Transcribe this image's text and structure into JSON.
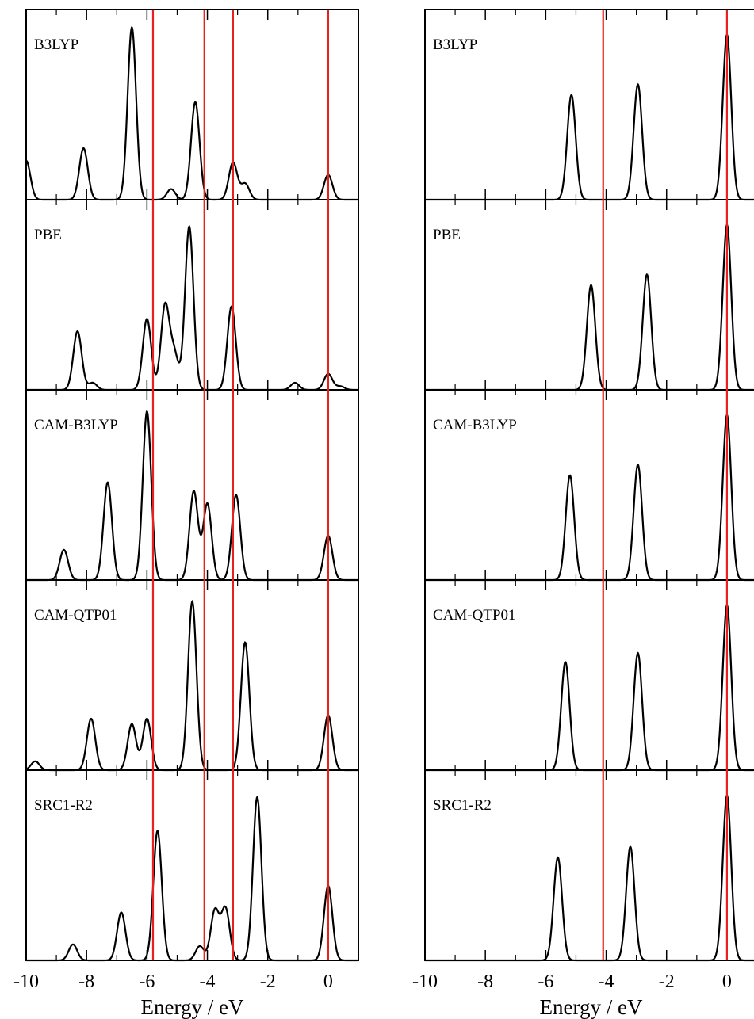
{
  "chart_data": [
    {
      "type": "line",
      "xlabel": "Energy / eV",
      "xlim": [
        -10,
        1
      ],
      "xticks": [
        -10,
        -8,
        -6,
        -4,
        -2,
        0
      ],
      "tick_labels": [
        "-10",
        "-8",
        "-6",
        "-4",
        "-2",
        "0"
      ],
      "reference_lines": [
        -5.8,
        -4.1,
        -3.15,
        0.0
      ],
      "reference_color": "#e8211e",
      "line_color": "#000000",
      "grid": false,
      "panels": [
        {
          "label": "B3LYP",
          "peaks": [
            {
              "x": -10.0,
              "height": 0.22
            },
            {
              "x": -8.1,
              "height": 0.29
            },
            {
              "x": -6.5,
              "height": 0.97
            },
            {
              "x": -5.2,
              "height": 0.06
            },
            {
              "x": -4.4,
              "height": 0.55
            },
            {
              "x": -3.15,
              "height": 0.21
            },
            {
              "x": -2.75,
              "height": 0.09
            },
            {
              "x": 0.0,
              "height": 0.14
            }
          ]
        },
        {
          "label": "PBE",
          "peaks": [
            {
              "x": -8.3,
              "height": 0.33
            },
            {
              "x": -7.8,
              "height": 0.04
            },
            {
              "x": -6.0,
              "height": 0.4
            },
            {
              "x": -5.4,
              "height": 0.47
            },
            {
              "x": -5.1,
              "height": 0.2
            },
            {
              "x": -4.6,
              "height": 0.92
            },
            {
              "x": -3.2,
              "height": 0.47
            },
            {
              "x": -1.1,
              "height": 0.04
            },
            {
              "x": 0.0,
              "height": 0.09
            },
            {
              "x": 0.4,
              "height": 0.02
            }
          ]
        },
        {
          "label": "CAM-B3LYP",
          "peaks": [
            {
              "x": -8.75,
              "height": 0.17
            },
            {
              "x": -7.3,
              "height": 0.55
            },
            {
              "x": -6.0,
              "height": 0.95
            },
            {
              "x": -4.45,
              "height": 0.5
            },
            {
              "x": -4.0,
              "height": 0.43
            },
            {
              "x": -3.05,
              "height": 0.48
            },
            {
              "x": 0.0,
              "height": 0.25
            }
          ]
        },
        {
          "label": "CAM-QTP01",
          "peaks": [
            {
              "x": -9.7,
              "height": 0.05
            },
            {
              "x": -7.85,
              "height": 0.29
            },
            {
              "x": -6.5,
              "height": 0.26
            },
            {
              "x": -6.0,
              "height": 0.29
            },
            {
              "x": -4.5,
              "height": 0.95
            },
            {
              "x": -2.75,
              "height": 0.72
            },
            {
              "x": 0.0,
              "height": 0.31
            }
          ]
        },
        {
          "label": "SRC1-R2",
          "peaks": [
            {
              "x": -8.45,
              "height": 0.09
            },
            {
              "x": -6.85,
              "height": 0.27
            },
            {
              "x": -5.65,
              "height": 0.73
            },
            {
              "x": -4.25,
              "height": 0.08
            },
            {
              "x": -3.75,
              "height": 0.28
            },
            {
              "x": -3.4,
              "height": 0.29
            },
            {
              "x": -2.35,
              "height": 0.92
            },
            {
              "x": 0.0,
              "height": 0.42
            }
          ]
        }
      ]
    },
    {
      "type": "line",
      "xlabel": "Energy / eV",
      "xlim": [
        -10,
        1
      ],
      "xticks": [
        -10,
        -8,
        -6,
        -4,
        -2,
        0
      ],
      "tick_labels": [
        "-10",
        "-8",
        "-6",
        "-4",
        "-2",
        "0"
      ],
      "reference_lines": [
        -4.1,
        0.0
      ],
      "reference_color": "#e8211e",
      "line_color": "#000000",
      "grid": false,
      "panels": [
        {
          "label": "B3LYP",
          "peaks": [
            {
              "x": -5.15,
              "height": 0.59
            },
            {
              "x": -2.95,
              "height": 0.65
            },
            {
              "x": 0.0,
              "height": 0.93
            }
          ]
        },
        {
          "label": "PBE",
          "peaks": [
            {
              "x": -4.5,
              "height": 0.59
            },
            {
              "x": -2.65,
              "height": 0.65
            },
            {
              "x": 0.0,
              "height": 0.93
            }
          ]
        },
        {
          "label": "CAM-B3LYP",
          "peaks": [
            {
              "x": -5.2,
              "height": 0.59
            },
            {
              "x": -2.95,
              "height": 0.65
            },
            {
              "x": 0.0,
              "height": 0.93
            }
          ]
        },
        {
          "label": "CAM-QTP01",
          "peaks": [
            {
              "x": -5.35,
              "height": 0.61
            },
            {
              "x": -2.95,
              "height": 0.66
            },
            {
              "x": 0.0,
              "height": 0.93
            }
          ]
        },
        {
          "label": "SRC1-R2",
          "peaks": [
            {
              "x": -5.6,
              "height": 0.58
            },
            {
              "x": -3.2,
              "height": 0.64
            },
            {
              "x": 0.0,
              "height": 0.93
            }
          ]
        }
      ]
    }
  ]
}
